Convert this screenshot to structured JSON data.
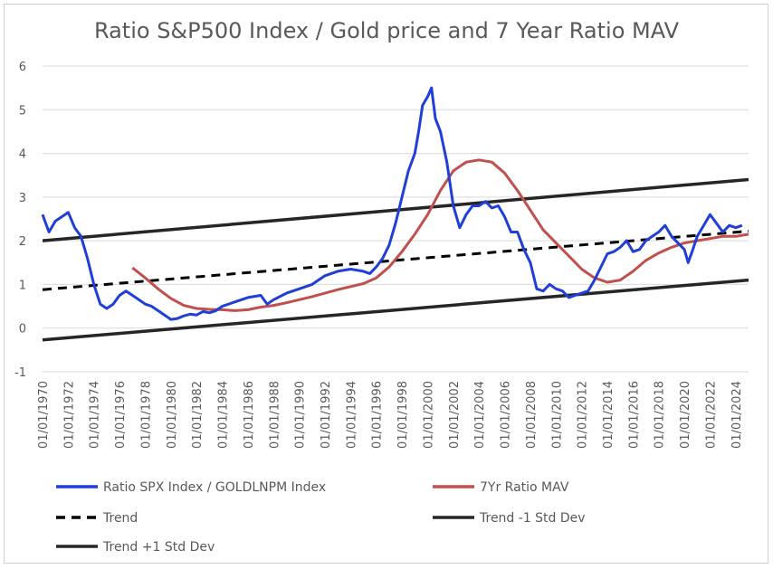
{
  "chart_data": {
    "type": "line",
    "title": "Ratio S&P500 Index / Gold price and 7 Year Ratio MAV",
    "xlabel": "",
    "ylabel": "",
    "ylim": [
      -1,
      6
    ],
    "yticks": [
      -1,
      0,
      1,
      2,
      3,
      4,
      5,
      6
    ],
    "xlim": [
      1970.0,
      2025.0
    ],
    "xtick_labels": [
      "01/01/1970",
      "01/01/1972",
      "01/01/1974",
      "01/01/1976",
      "01/01/1978",
      "01/01/1980",
      "01/01/1982",
      "01/01/1984",
      "01/01/1986",
      "01/01/1988",
      "01/01/1990",
      "01/01/1992",
      "01/01/1994",
      "01/01/1996",
      "01/01/1998",
      "01/01/2000",
      "01/01/2002",
      "01/01/2004",
      "01/01/2006",
      "01/01/2008",
      "01/01/2010",
      "01/01/2012",
      "01/01/2014",
      "01/01/2016",
      "01/01/2018",
      "01/01/2020",
      "01/01/2022",
      "01/01/2024"
    ],
    "grid": "horizontal",
    "legend_position": "bottom",
    "series": [
      {
        "name": "Ratio SPX Index / GOLDLNPM Index",
        "color": "#1f3fd6",
        "style": "solid",
        "x": [
          1970.0,
          1970.5,
          1971.0,
          1971.5,
          1972.0,
          1972.5,
          1973.0,
          1973.5,
          1974.0,
          1974.5,
          1975.0,
          1975.5,
          1976.0,
          1976.5,
          1977.0,
          1977.5,
          1978.0,
          1978.5,
          1979.0,
          1979.5,
          1980.0,
          1980.5,
          1981.0,
          1981.5,
          1982.0,
          1982.5,
          1983.0,
          1983.5,
          1984.0,
          1985.0,
          1986.0,
          1987.0,
          1987.5,
          1988.0,
          1989.0,
          1990.0,
          1991.0,
          1992.0,
          1993.0,
          1994.0,
          1995.0,
          1995.5,
          1996.0,
          1996.5,
          1997.0,
          1997.5,
          1998.0,
          1998.5,
          1999.0,
          1999.3,
          1999.6,
          2000.0,
          2000.3,
          2000.6,
          2001.0,
          2001.5,
          2002.0,
          2002.5,
          2003.0,
          2003.5,
          2004.0,
          2004.5,
          2005.0,
          2005.5,
          2006.0,
          2006.5,
          2007.0,
          2007.5,
          2008.0,
          2008.5,
          2009.0,
          2009.5,
          2010.0,
          2010.5,
          2011.0,
          2011.5,
          2012.0,
          2012.5,
          2013.0,
          2013.5,
          2014.0,
          2014.5,
          2015.0,
          2015.5,
          2016.0,
          2016.5,
          2017.0,
          2017.5,
          2018.0,
          2018.5,
          2019.0,
          2019.5,
          2020.0,
          2020.3,
          2020.6,
          2021.0,
          2021.5,
          2022.0,
          2022.5,
          2023.0,
          2023.5,
          2024.0,
          2024.5
        ],
        "y": [
          2.6,
          2.2,
          2.45,
          2.55,
          2.65,
          2.3,
          2.1,
          1.6,
          1.0,
          0.55,
          0.45,
          0.55,
          0.75,
          0.85,
          0.75,
          0.65,
          0.55,
          0.5,
          0.4,
          0.3,
          0.2,
          0.22,
          0.28,
          0.32,
          0.3,
          0.38,
          0.35,
          0.4,
          0.5,
          0.6,
          0.7,
          0.75,
          0.55,
          0.65,
          0.8,
          0.9,
          1.0,
          1.2,
          1.3,
          1.35,
          1.3,
          1.25,
          1.4,
          1.6,
          1.9,
          2.4,
          3.0,
          3.6,
          4.0,
          4.5,
          5.1,
          5.3,
          5.5,
          4.8,
          4.5,
          3.8,
          2.8,
          2.3,
          2.6,
          2.8,
          2.8,
          2.9,
          2.75,
          2.8,
          2.55,
          2.2,
          2.2,
          1.8,
          1.5,
          0.9,
          0.85,
          1.0,
          0.9,
          0.85,
          0.7,
          0.75,
          0.8,
          0.85,
          1.1,
          1.4,
          1.7,
          1.75,
          1.85,
          2.0,
          1.75,
          1.8,
          2.0,
          2.1,
          2.2,
          2.35,
          2.1,
          1.95,
          1.8,
          1.5,
          1.75,
          2.1,
          2.35,
          2.6,
          2.4,
          2.2,
          2.35,
          2.3,
          2.35
        ]
      },
      {
        "name": "7Yr Ratio MAV",
        "color": "#c0504d",
        "style": "solid",
        "x": [
          1977.0,
          1978.0,
          1979.0,
          1980.0,
          1981.0,
          1982.0,
          1983.0,
          1984.0,
          1985.0,
          1986.0,
          1987.0,
          1988.0,
          1989.0,
          1990.0,
          1991.0,
          1992.0,
          1993.0,
          1994.0,
          1995.0,
          1996.0,
          1997.0,
          1998.0,
          1999.0,
          2000.0,
          2001.0,
          2002.0,
          2003.0,
          2004.0,
          2005.0,
          2006.0,
          2007.0,
          2008.0,
          2009.0,
          2010.0,
          2011.0,
          2012.0,
          2013.0,
          2014.0,
          2015.0,
          2016.0,
          2017.0,
          2018.0,
          2019.0,
          2020.0,
          2021.0,
          2022.0,
          2023.0,
          2024.0,
          2025.0
        ],
        "y": [
          1.38,
          1.15,
          0.9,
          0.68,
          0.52,
          0.45,
          0.43,
          0.42,
          0.4,
          0.42,
          0.48,
          0.52,
          0.58,
          0.65,
          0.72,
          0.8,
          0.88,
          0.95,
          1.02,
          1.15,
          1.4,
          1.75,
          2.15,
          2.6,
          3.15,
          3.6,
          3.8,
          3.85,
          3.8,
          3.55,
          3.15,
          2.7,
          2.25,
          1.95,
          1.65,
          1.35,
          1.15,
          1.05,
          1.1,
          1.3,
          1.55,
          1.72,
          1.85,
          1.95,
          2.0,
          2.05,
          2.1,
          2.1,
          2.15
        ]
      },
      {
        "name": "Trend",
        "color": "#000000",
        "style": "dashed",
        "x": [
          1970.0,
          2025.0
        ],
        "y": [
          0.88,
          2.22
        ]
      },
      {
        "name": "Trend -1 Std Dev",
        "color": "#262626",
        "style": "solid",
        "x": [
          1970.0,
          2025.0
        ],
        "y": [
          -0.27,
          1.1
        ]
      },
      {
        "name": "Trend +1 Std Dev",
        "color": "#262626",
        "style": "solid",
        "x": [
          1970.0,
          2025.0
        ],
        "y": [
          2.0,
          3.4
        ]
      }
    ]
  }
}
